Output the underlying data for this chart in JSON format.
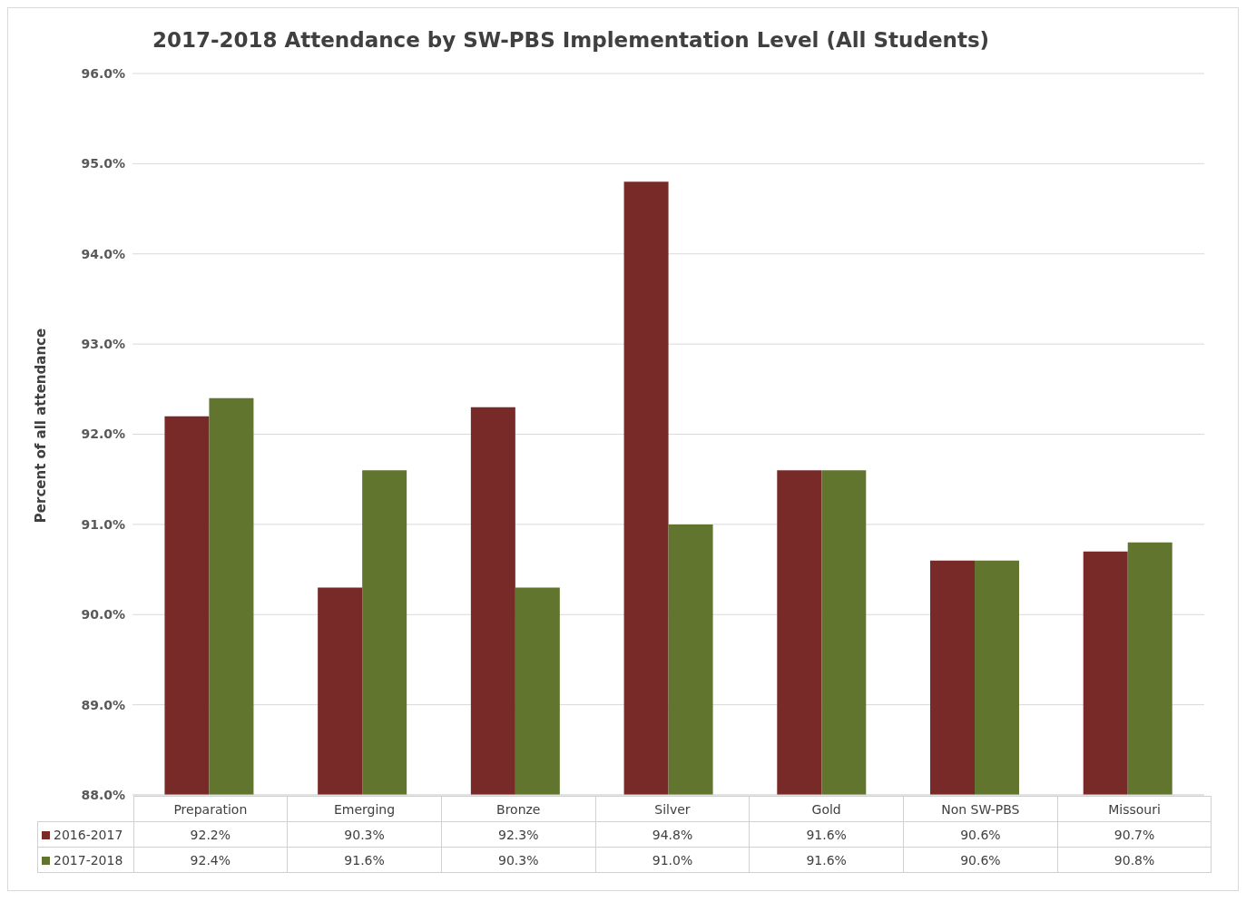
{
  "chart_data": {
    "type": "bar",
    "title": "2017-2018 Attendance by SW-PBS Implementation Level (All Students)",
    "ylabel": "Percent of all attendance",
    "categories": [
      "Preparation",
      "Emerging",
      "Bronze",
      "Silver",
      "Gold",
      "Non SW-PBS",
      "Missouri"
    ],
    "series": [
      {
        "name": "2016-2017",
        "color": "#772a28",
        "values": [
          92.2,
          90.3,
          92.3,
          94.8,
          91.6,
          90.6,
          90.7
        ],
        "value_labels": [
          "92.2%",
          "90.3%",
          "92.3%",
          "94.8%",
          "91.6%",
          "90.6%",
          "90.7%"
        ]
      },
      {
        "name": "2017-2018",
        "color": "#61752f",
        "values": [
          92.4,
          91.6,
          90.3,
          91.0,
          91.6,
          90.6,
          90.8
        ],
        "value_labels": [
          "92.4%",
          "91.6%",
          "90.3%",
          "91.0%",
          "91.6%",
          "90.6%",
          "90.8%"
        ]
      }
    ],
    "ylim": [
      88,
      96
    ],
    "yticks": [
      {
        "value": 88,
        "label": "88.0%"
      },
      {
        "value": 89,
        "label": "89.0%"
      },
      {
        "value": 90,
        "label": "90.0%"
      },
      {
        "value": 91,
        "label": "91.0%"
      },
      {
        "value": 92,
        "label": "92.0%"
      },
      {
        "value": 93,
        "label": "93.0%"
      },
      {
        "value": 94,
        "label": "94.0%"
      },
      {
        "value": 95,
        "label": "95.0%"
      },
      {
        "value": 96,
        "label": "96.0%"
      }
    ],
    "grid": "y",
    "legend": "bottom"
  }
}
